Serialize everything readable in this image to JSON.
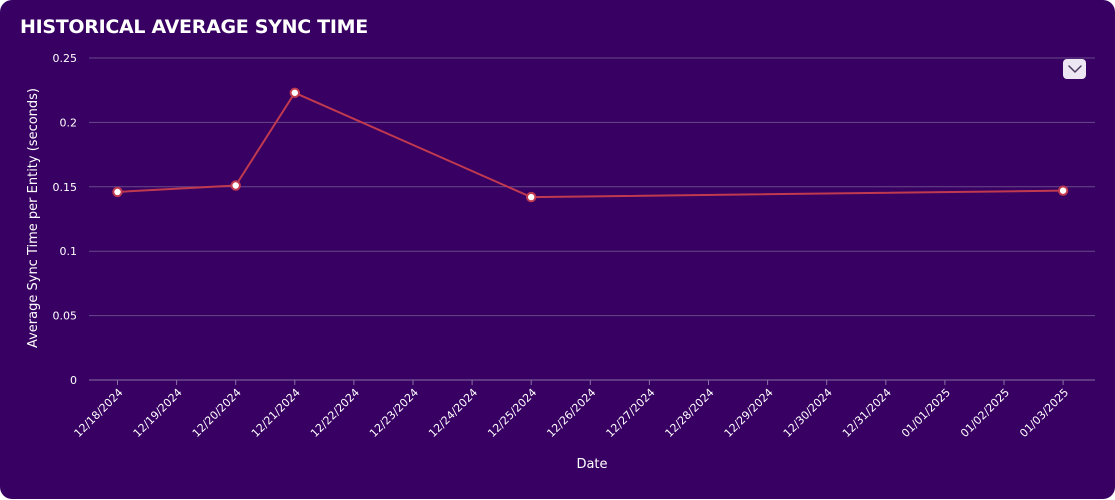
{
  "panel": {
    "title": "HISTORICAL AVERAGE SYNC TIME",
    "menu_icon": "chevron-down-icon"
  },
  "chart_data": {
    "type": "line",
    "title": "HISTORICAL AVERAGE SYNC TIME",
    "xlabel": "Date",
    "ylabel": "Average Sync Time per Entity (seconds)",
    "categories": [
      "12/18/2024",
      "12/19/2024",
      "12/20/2024",
      "12/21/2024",
      "12/22/2024",
      "12/23/2024",
      "12/24/2024",
      "12/25/2024",
      "12/26/2024",
      "12/27/2024",
      "12/28/2024",
      "12/29/2024",
      "12/30/2024",
      "12/31/2024",
      "01/01/2025",
      "01/02/2025",
      "01/03/2025"
    ],
    "y_ticks": [
      0,
      0.05,
      0.1,
      0.15,
      0.2,
      0.25
    ],
    "y_tick_labels": [
      "0",
      "0.05",
      "0.1",
      "0.15",
      "0.2",
      "0.25"
    ],
    "ylim": [
      0,
      0.25
    ],
    "grid": true,
    "series": [
      {
        "color": "#c0394f",
        "points": [
          {
            "x": "12/18/2024",
            "y": 0.146
          },
          {
            "x": "12/20/2024",
            "y": 0.151
          },
          {
            "x": "12/21/2024",
            "y": 0.223
          },
          {
            "x": "12/25/2024",
            "y": 0.142
          },
          {
            "x": "01/03/2025",
            "y": 0.147
          }
        ]
      }
    ],
    "colors": {
      "background": "#370062",
      "grid": "#6a4a8a",
      "axis": "#8a72a6",
      "text": "#ffffff",
      "marker_fill": "#ffffff"
    }
  }
}
